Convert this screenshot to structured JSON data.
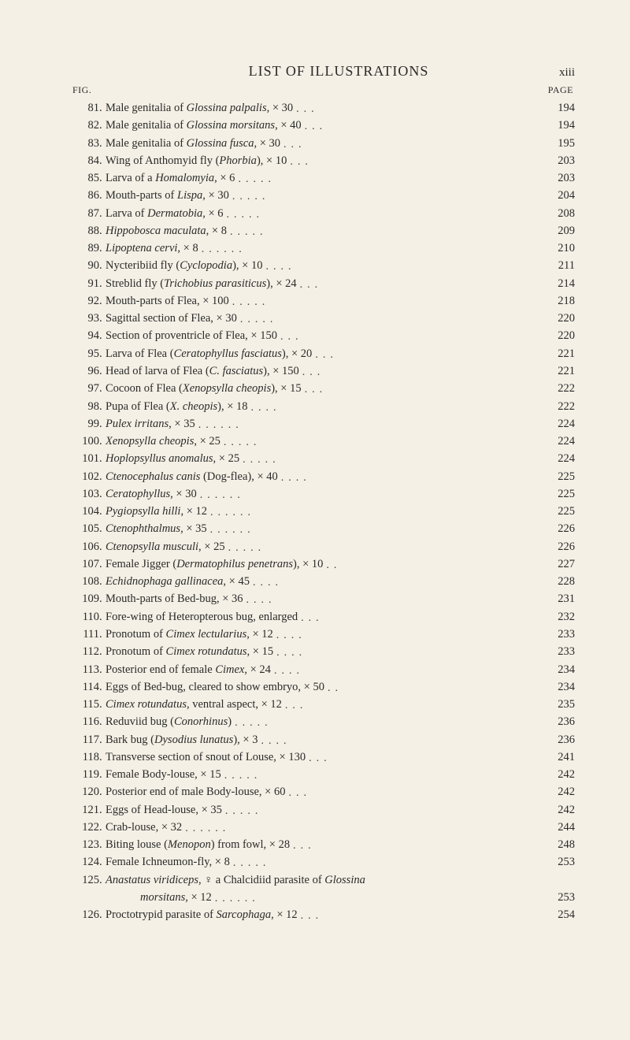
{
  "header": {
    "title": "LIST OF ILLUSTRATIONS",
    "roman": "xiii",
    "fig_label": "FIG.",
    "page_label": "PAGE"
  },
  "entries": [
    {
      "n": "81",
      "html": "Male genitalia of <em class='sp'>Glossina palpalis</em>, × 30",
      "dots": 3,
      "pg": "194"
    },
    {
      "n": "82",
      "html": "Male genitalia of <em class='sp'>Glossina morsitans</em>, × 40",
      "dots": 3,
      "pg": "194"
    },
    {
      "n": "83",
      "html": "Male genitalia of <em class='sp'>Glossina fusca</em>, × 30",
      "dots": 3,
      "pg": "195"
    },
    {
      "n": "84",
      "html": "Wing of Anthomyid fly (<em class='sp'>Phorbia</em>), × 10",
      "dots": 3,
      "pg": "203"
    },
    {
      "n": "85",
      "html": "Larva of a <em class='sp'>Homalomyia</em>, × 6",
      "dots": 5,
      "pg": "203"
    },
    {
      "n": "86",
      "html": "Mouth-parts of <em class='sp'>Lispa</em>, × 30",
      "dots": 5,
      "pg": "204"
    },
    {
      "n": "87",
      "html": "Larva of <em class='sp'>Dermatobia</em>, × 6",
      "dots": 5,
      "pg": "208"
    },
    {
      "n": "88",
      "html": "<em class='sp'>Hippobosca maculata</em>, × 8",
      "dots": 5,
      "pg": "209"
    },
    {
      "n": "89",
      "html": "<em class='sp'>Lipoptena cervi</em>, × 8",
      "dots": 6,
      "pg": "210"
    },
    {
      "n": "90",
      "html": "Nycteribiid fly (<em class='sp'>Cyclopodia</em>), × 10",
      "dots": 4,
      "pg": "211"
    },
    {
      "n": "91",
      "html": "Streblid fly (<em class='sp'>Trichobius parasiticus</em>), × 24",
      "dots": 3,
      "pg": "214"
    },
    {
      "n": "92",
      "html": "Mouth-parts of Flea, × 100",
      "dots": 5,
      "pg": "218"
    },
    {
      "n": "93",
      "html": "Sagittal section of Flea, × 30",
      "dots": 5,
      "pg": "220"
    },
    {
      "n": "94",
      "html": "Section of proventricle of Flea, × 150",
      "dots": 3,
      "pg": "220"
    },
    {
      "n": "95",
      "html": "Larva of Flea (<em class='sp'>Ceratophyllus fasciatus</em>), × 20",
      "dots": 3,
      "pg": "221"
    },
    {
      "n": "96",
      "html": "Head of larva of Flea (<em class='sp'>C. fasciatus</em>), × 150",
      "dots": 3,
      "pg": "221"
    },
    {
      "n": "97",
      "html": "Cocoon of Flea (<em class='sp'>Xenopsylla cheopis</em>), × 15",
      "dots": 3,
      "pg": "222"
    },
    {
      "n": "98",
      "html": "Pupa of Flea (<em class='sp'>X. cheopis</em>), × 18",
      "dots": 4,
      "pg": "222"
    },
    {
      "n": "99",
      "html": "<em class='sp'>Pulex irritans</em>, × 35",
      "dots": 6,
      "pg": "224"
    },
    {
      "n": "100",
      "html": "<em class='sp'>Xenopsylla cheopis</em>, × 25",
      "dots": 5,
      "pg": "224"
    },
    {
      "n": "101",
      "html": "<em class='sp'>Hoplopsyllus anomalus</em>, × 25",
      "dots": 5,
      "pg": "224"
    },
    {
      "n": "102",
      "html": "<em class='sp'>Ctenocephalus canis</em> (Dog-flea), × 40",
      "dots": 4,
      "pg": "225"
    },
    {
      "n": "103",
      "html": "<em class='sp'>Ceratophyllus</em>, × 30",
      "dots": 6,
      "pg": "225"
    },
    {
      "n": "104",
      "html": "<em class='sp'>Pygiopsylla hilli</em>, × 12",
      "dots": 6,
      "pg": "225"
    },
    {
      "n": "105",
      "html": "<em class='sp'>Ctenophthalmus</em>, × 35",
      "dots": 6,
      "pg": "226"
    },
    {
      "n": "106",
      "html": "<em class='sp'>Ctenopsylla musculi</em>, × 25",
      "dots": 5,
      "pg": "226"
    },
    {
      "n": "107",
      "html": "Female Jigger (<em class='sp'>Dermatophilus penetrans</em>), × 10",
      "dots": 2,
      "pg": "227"
    },
    {
      "n": "108",
      "html": "<em class='sp'>Echidnophaga gallinacea</em>, × 45",
      "dots": 4,
      "pg": "228"
    },
    {
      "n": "109",
      "html": "Mouth-parts of Bed-bug, × 36",
      "dots": 4,
      "pg": "231"
    },
    {
      "n": "110",
      "html": "Fore-wing of Heteropterous bug, enlarged",
      "dots": 3,
      "pg": "232"
    },
    {
      "n": "111",
      "html": "Pronotum of <em class='sp'>Cimex lectularius</em>, × 12",
      "dots": 4,
      "pg": "233"
    },
    {
      "n": "112",
      "html": "Pronotum of <em class='sp'>Cimex rotundatus</em>, × 15",
      "dots": 4,
      "pg": "233"
    },
    {
      "n": "113",
      "html": "Posterior end of female <em class='sp'>Cimex</em>, × 24",
      "dots": 4,
      "pg": "234"
    },
    {
      "n": "114",
      "html": "Eggs of Bed-bug, cleared to show embryo, × 50",
      "dots": 2,
      "pg": "234"
    },
    {
      "n": "115",
      "html": "<em class='sp'>Cimex rotundatus</em>, ventral aspect, × 12",
      "dots": 3,
      "pg": "235"
    },
    {
      "n": "116",
      "html": "Reduviid bug (<em class='sp'>Conorhinus</em>)",
      "dots": 5,
      "pg": "236"
    },
    {
      "n": "117",
      "html": "Bark bug (<em class='sp'>Dysodius lunatus</em>), × 3",
      "dots": 4,
      "pg": "236"
    },
    {
      "n": "118",
      "html": "Transverse section of snout of Louse, × 130",
      "dots": 3,
      "pg": "241"
    },
    {
      "n": "119",
      "html": "Female Body-louse, × 15",
      "dots": 5,
      "pg": "242"
    },
    {
      "n": "120",
      "html": "Posterior end of male Body-louse, × 60",
      "dots": 3,
      "pg": "242"
    },
    {
      "n": "121",
      "html": "Eggs of Head-louse, × 35",
      "dots": 5,
      "pg": "242"
    },
    {
      "n": "122",
      "html": "Crab-louse, × 32",
      "dots": 6,
      "pg": "244"
    },
    {
      "n": "123",
      "html": "Biting louse (<em class='sp'>Menopon</em>) from fowl, × 28",
      "dots": 3,
      "pg": "248"
    },
    {
      "n": "124",
      "html": "Female Ichneumon-fly, × 8",
      "dots": 5,
      "pg": "253"
    },
    {
      "n": "125",
      "html": "<em class='sp'>Anastatus viridiceps</em>, ♀ a Chalcidiid parasite of <em class='sp'>Glossina</em>",
      "continuation": {
        "html": "<em class='sp'>morsitans</em>, × 12",
        "dots": 6,
        "pg": "253"
      }
    },
    {
      "n": "126",
      "html": "Proctotrypid parasite of <em class='sp'>Sarcophaga</em>, × 12",
      "dots": 3,
      "pg": "254"
    }
  ]
}
